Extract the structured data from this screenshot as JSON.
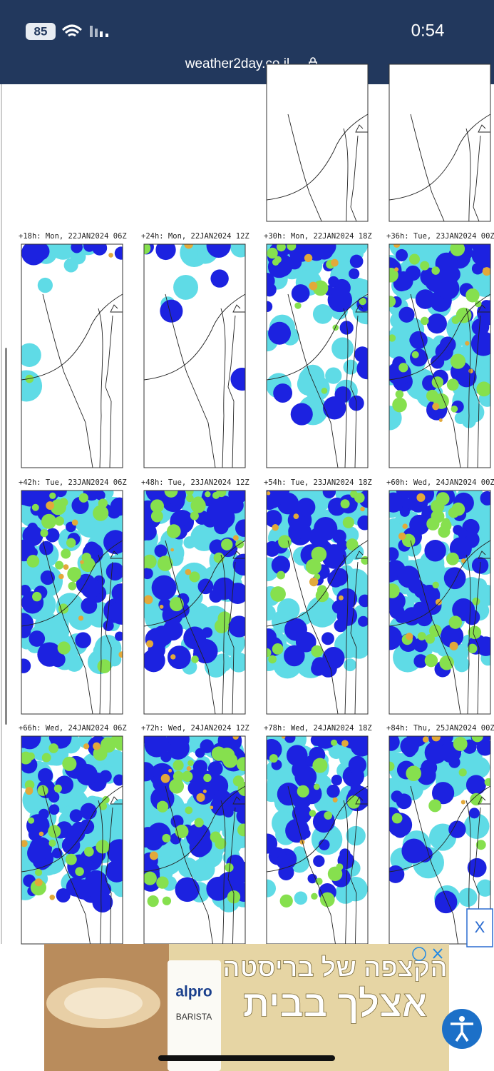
{
  "status": {
    "battery": "85",
    "time": "0:54"
  },
  "browser": {
    "url": "weather2day.co.il"
  },
  "panels": [
    {
      "label": "+18h: Mon, 22JAN2024 06Z"
    },
    {
      "label": "+24h: Mon, 22JAN2024 12Z"
    },
    {
      "label": "+30h: Mon, 22JAN2024 18Z"
    },
    {
      "label": "+36h: Tue, 23JAN2024 00Z"
    },
    {
      "label": "+42h: Tue, 23JAN2024 06Z"
    },
    {
      "label": "+48h: Tue, 23JAN2024 12Z"
    },
    {
      "label": "+54h: Tue, 23JAN2024 18Z"
    },
    {
      "label": "+60h: Wed, 24JAN2024 00Z"
    },
    {
      "label": "+66h: Wed, 24JAN2024 06Z"
    },
    {
      "label": "+72h: Wed, 24JAN2024 12Z"
    },
    {
      "label": "+78h: Wed, 24JAN2024 18Z"
    },
    {
      "label": "+84h: Thu, 25JAN2024 00Z"
    }
  ],
  "ad": {
    "headline1": "הקצפה של בריסטה",
    "headline2": "אצלך בבית",
    "brand": "alpro",
    "product": "BARISTA",
    "close": "X"
  }
}
